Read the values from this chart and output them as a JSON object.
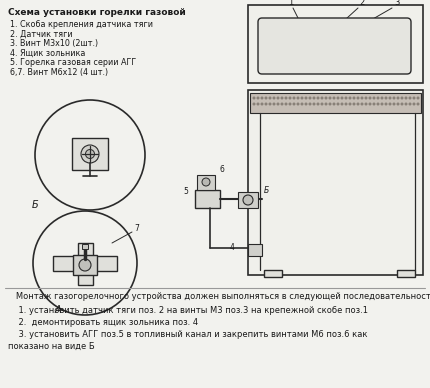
{
  "title": "Схема установки горелки газовой",
  "legend_items": [
    "1. Скоба крепления датчика тяги",
    "2. Датчик тяги",
    "3. Винт М3х10 (2шт.)",
    "4. Ящик зольника",
    "5. Горелка газовая серии АГГ",
    "6,7. Винт М6х12 (4 шт.)"
  ],
  "footer_title": "   Монтаж газогорелочного устройства должен выполняться в следующей последовательности:",
  "footer_items": [
    "1. установить датчик тяги поз. 2 на винты М3 поз.3 на крепежной скобе поз.1",
    "2.  демонтировать ящик зольника поз. 4",
    "3. установить АГГ поз.5 в топливный канал и закрепить винтами М6 поз.6 как",
    "показано на виде Б"
  ],
  "bg_color": "#f2f2ee",
  "line_color": "#2a2a2a",
  "text_color": "#1a1a1a"
}
